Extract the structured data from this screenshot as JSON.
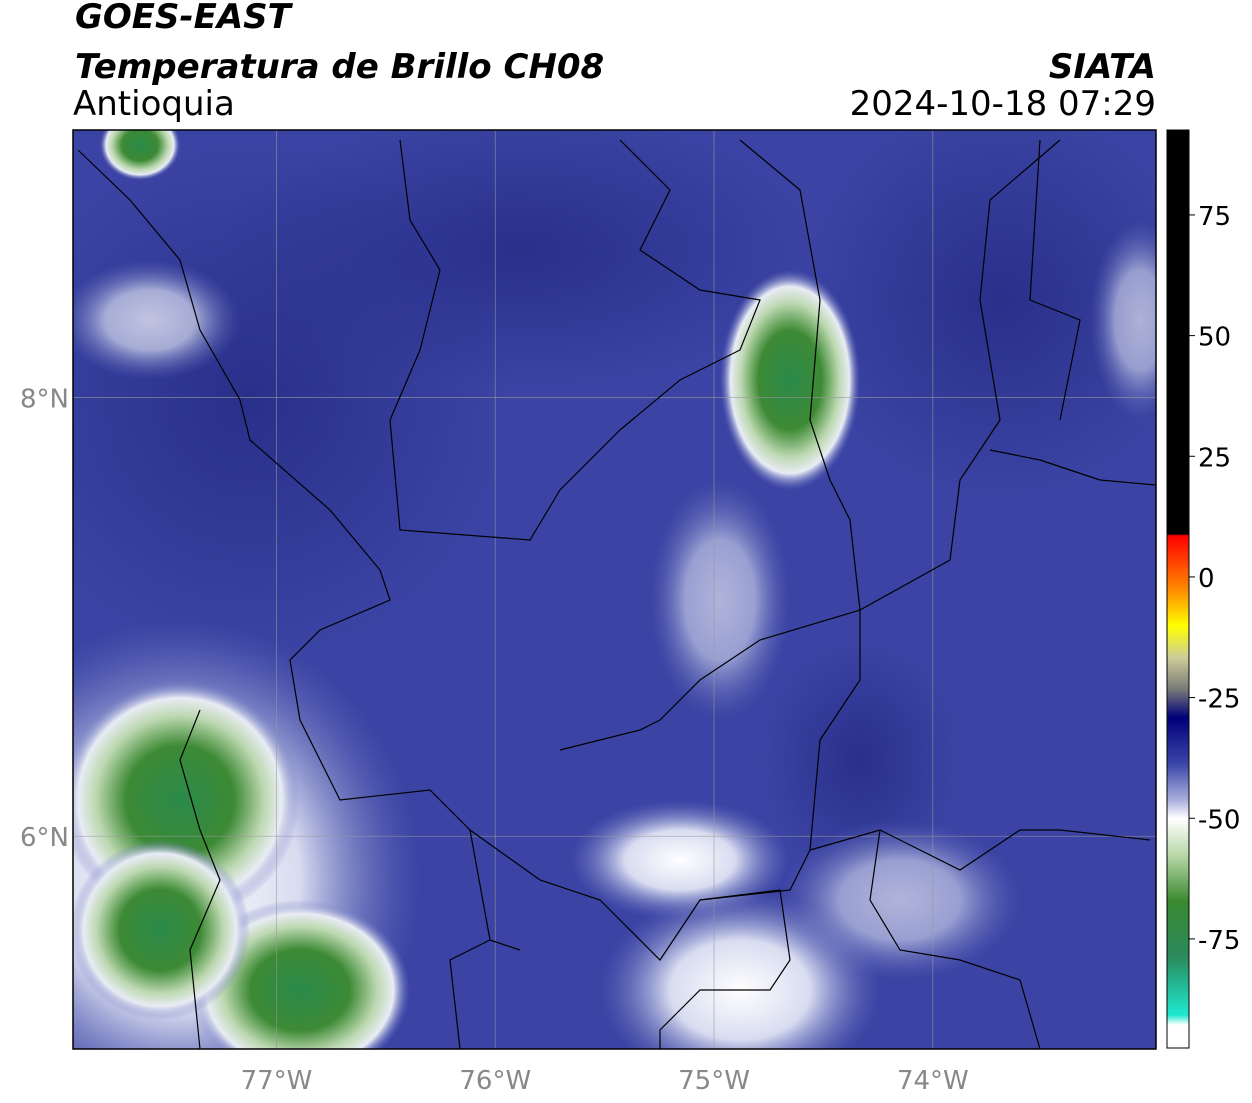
{
  "header": {
    "title": "GOES-EAST",
    "subtitle": "Temperatura de Brillo CH08",
    "region": "Antioquia",
    "source": "SIATA",
    "datetime": "2024-10-18 07:29"
  },
  "map": {
    "xlim": [
      -77.93,
      -72.98
    ],
    "ylim": [
      5.03,
      9.22
    ],
    "xticks": [
      {
        "value": -77,
        "label": "77°W"
      },
      {
        "value": -76,
        "label": "76°W"
      },
      {
        "value": -75,
        "label": "75°W"
      },
      {
        "value": -74,
        "label": "74°W"
      }
    ],
    "yticks": [
      {
        "value": 8,
        "label": "8°N"
      },
      {
        "value": 6,
        "label": "6°N"
      }
    ]
  },
  "colorbar": {
    "ylim": [
      -97.6,
      92.6
    ],
    "yticks": [
      75,
      50,
      25,
      0,
      -25,
      -50,
      -75
    ]
  }
}
